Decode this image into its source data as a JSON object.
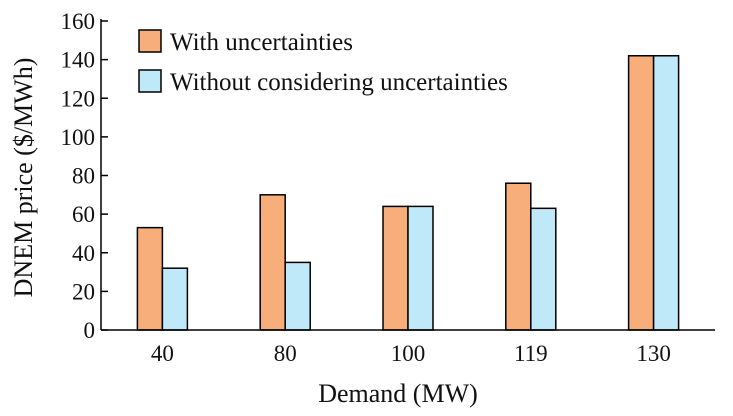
{
  "chart_data": {
    "type": "bar",
    "categories": [
      "40",
      "80",
      "100",
      "119",
      "130"
    ],
    "series": [
      {
        "name": "With uncertainties",
        "color": "#f8ae7a",
        "values": [
          53,
          70,
          64,
          76,
          142
        ]
      },
      {
        "name": "Without considering uncertainties",
        "color": "#bfe8f8",
        "values": [
          32,
          35,
          64,
          63,
          142
        ]
      }
    ],
    "xlabel": "Demand (MW)",
    "ylabel": "DNEM price ($/MWh)",
    "ylim": [
      0,
      160
    ],
    "yticks": [
      0,
      20,
      40,
      60,
      80,
      100,
      120,
      140,
      160
    ],
    "grid": false,
    "legend_position": "top-left"
  }
}
